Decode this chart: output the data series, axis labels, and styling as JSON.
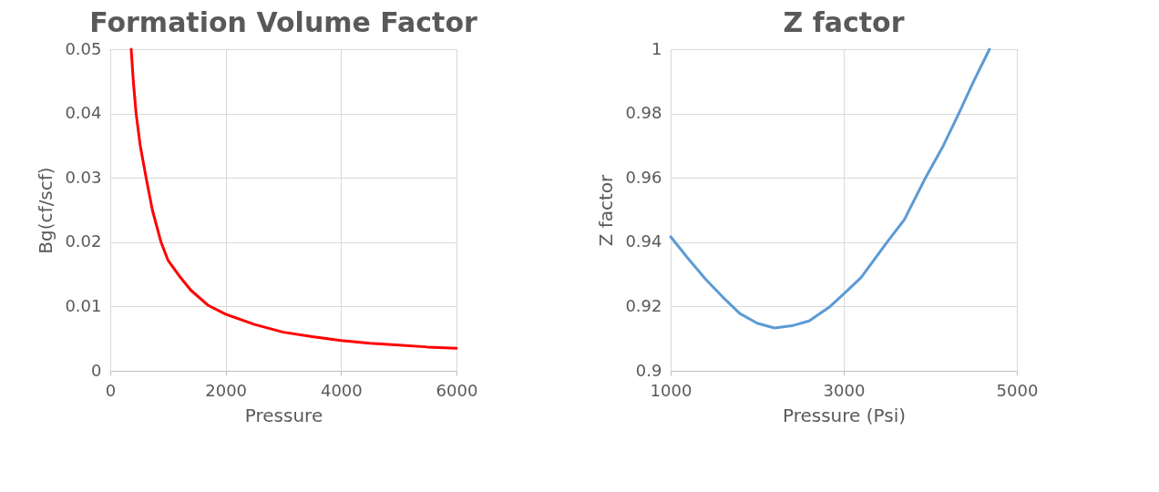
{
  "chart_data": [
    {
      "type": "line",
      "title": "Formation Volume Factor",
      "xlabel": "Pressure",
      "ylabel": "Bg(cf/scf)",
      "xlim": [
        0,
        6000
      ],
      "xticks": [
        0,
        2000,
        4000,
        6000
      ],
      "ylim": [
        0,
        0.05
      ],
      "yticks": [
        0,
        0.01,
        0.02,
        0.03,
        0.04,
        0.05
      ],
      "grid": true,
      "line_style": "solid",
      "series": [
        {
          "color": "#ff0000",
          "x": [
            363,
            400,
            448,
            520,
            622,
            730,
            880,
            1000,
            1200,
            1400,
            1692,
            2000,
            2500,
            3000,
            3500,
            4000,
            4500,
            5000,
            5500,
            6000
          ],
          "values": [
            0.05,
            0.045,
            0.04,
            0.035,
            0.03,
            0.025,
            0.02,
            0.0172,
            0.0147,
            0.0125,
            0.0102,
            0.0088,
            0.0072,
            0.006,
            0.0053,
            0.0047,
            0.0043,
            0.004,
            0.0037,
            0.0035
          ]
        }
      ]
    },
    {
      "type": "line",
      "title": "Z factor",
      "xlabel": "Pressure (Psi)",
      "ylabel": "Z factor",
      "xlim": [
        1000,
        5000
      ],
      "xticks": [
        1000,
        3000,
        5000
      ],
      "ylim": [
        0.9,
        1
      ],
      "yticks": [
        0.9,
        0.92,
        0.94,
        0.96,
        0.98,
        1
      ],
      "grid": true,
      "line_style": "solid",
      "series": [
        {
          "color": "#5b9bd5",
          "x": [
            1000,
            1200,
            1400,
            1600,
            1800,
            2000,
            2200,
            2400,
            2600,
            2842,
            3000,
            3200,
            3500,
            3700,
            3944,
            4150,
            4329,
            4500,
            4684
          ],
          "values": [
            0.9417,
            0.935,
            0.9286,
            0.923,
            0.9178,
            0.9148,
            0.9133,
            0.914,
            0.9155,
            0.92,
            0.9239,
            0.929,
            0.94,
            0.947,
            0.96,
            0.97,
            0.98,
            0.99,
            1.0
          ]
        }
      ]
    }
  ]
}
